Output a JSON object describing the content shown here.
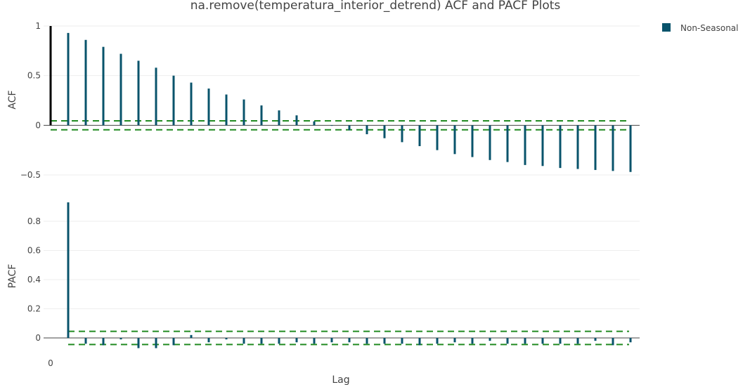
{
  "chart_data": {
    "type": "bar",
    "title": "na.remove(temperatura_interior_detrend) ACF and PACF Plots",
    "xlabel": "Lag",
    "x_tick_labels": [
      "0"
    ],
    "grid": true,
    "legend": {
      "placement": "top-right",
      "entries": [
        "Non-Seasonal"
      ]
    },
    "colors": {
      "bars": "#08536b",
      "lag0": "#000000",
      "confidence": "#228b22",
      "grid": "#eeeeee",
      "zero_line": "#444444"
    },
    "panels": [
      {
        "name": "acf",
        "ylabel": "ACF",
        "ylim": [
          -0.5,
          1
        ],
        "y_ticks": [
          -0.5,
          0,
          0.5,
          1
        ],
        "y_tick_labels": [
          "−0.5",
          "0",
          "0.5",
          "1"
        ],
        "confidence_band": [
          -0.045,
          0.045
        ],
        "lags": [
          0,
          1,
          2,
          3,
          4,
          5,
          6,
          7,
          8,
          9,
          10,
          11,
          12,
          13,
          14,
          15,
          16,
          17,
          18,
          19,
          20,
          21,
          22,
          23,
          24,
          25,
          26,
          27,
          28,
          29,
          30,
          31,
          32,
          33
        ],
        "values": [
          1.0,
          0.93,
          0.86,
          0.79,
          0.72,
          0.65,
          0.58,
          0.5,
          0.43,
          0.37,
          0.31,
          0.26,
          0.2,
          0.15,
          0.1,
          0.04,
          0.0,
          -0.05,
          -0.09,
          -0.13,
          -0.17,
          -0.21,
          -0.25,
          -0.29,
          -0.32,
          -0.35,
          -0.37,
          -0.4,
          -0.41,
          -0.43,
          -0.44,
          -0.45,
          -0.46,
          -0.47
        ]
      },
      {
        "name": "pacf",
        "ylabel": "PACF",
        "ylim": [
          -0.06,
          0.92
        ],
        "y_ticks": [
          0,
          0.2,
          0.4,
          0.6,
          0.8
        ],
        "y_tick_labels": [
          "0",
          "0.2",
          "0.4",
          "0.6",
          "0.8"
        ],
        "confidence_band": [
          -0.045,
          0.045
        ],
        "lags": [
          1,
          2,
          3,
          4,
          5,
          6,
          7,
          8,
          9,
          10,
          11,
          12,
          13,
          14,
          15,
          16,
          17,
          18,
          19,
          20,
          21,
          22,
          23,
          24,
          25,
          26,
          27,
          28,
          29,
          30,
          31,
          32,
          33
        ],
        "values": [
          0.93,
          -0.04,
          -0.05,
          -0.01,
          -0.07,
          -0.07,
          -0.05,
          0.02,
          -0.03,
          -0.01,
          -0.04,
          -0.04,
          -0.04,
          -0.03,
          -0.04,
          -0.03,
          -0.03,
          -0.04,
          -0.04,
          -0.04,
          -0.05,
          -0.04,
          -0.03,
          -0.04,
          -0.02,
          -0.04,
          -0.04,
          -0.04,
          -0.04,
          -0.04,
          -0.02,
          -0.05,
          -0.03
        ]
      }
    ]
  }
}
